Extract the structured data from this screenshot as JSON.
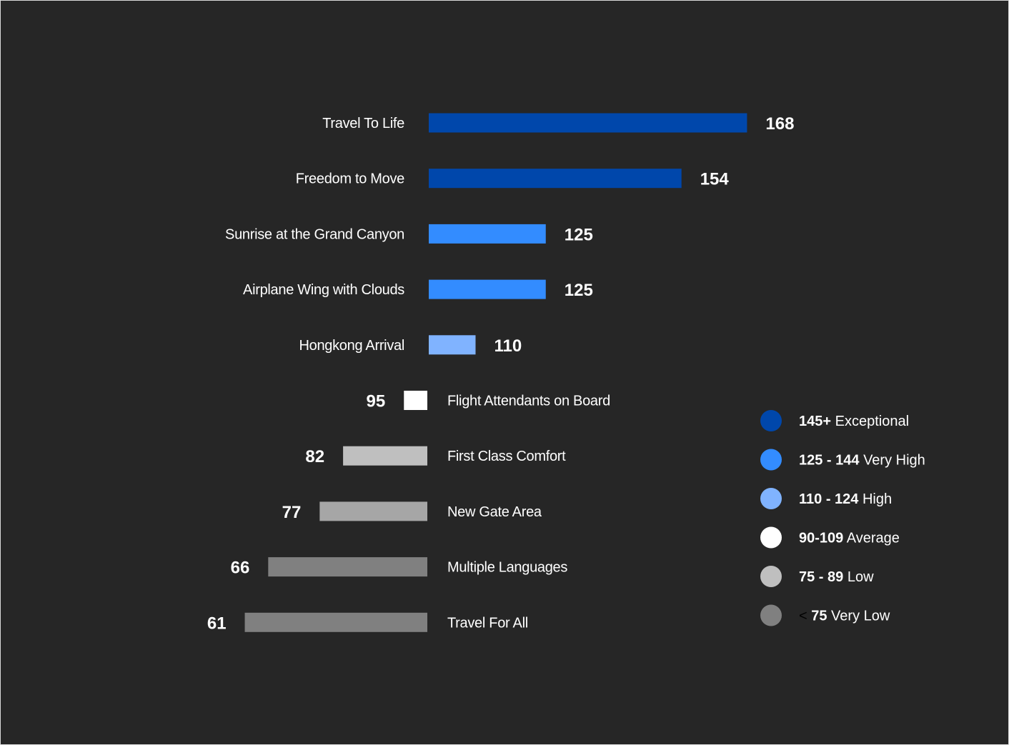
{
  "chart_data": {
    "type": "bar",
    "orientation": "horizontal",
    "baseline": 100,
    "categories": [
      "Travel  To Life",
      "Freedom to Move",
      "Sunrise at the Grand Canyon",
      "Airplane Wing with Clouds",
      "Hongkong Arrival",
      "Flight Attendants on Board",
      "First Class Comfort",
      "New Gate Area",
      "Multiple Languages",
      "Travel  For All"
    ],
    "values": [
      168,
      154,
      125,
      125,
      110,
      95,
      82,
      77,
      66,
      61
    ],
    "value_labels": [
      "168",
      "154",
      "125",
      "125",
      "110",
      "95",
      "82",
      "77",
      "66",
      "61"
    ],
    "bar_colors": [
      "#0047AB",
      "#0047AB",
      "#338CFF",
      "#338CFF",
      "#80B3FF",
      "#FFFFFF",
      "#BFBFBF",
      "#A6A6A6",
      "#808080",
      "#808080"
    ],
    "legend": [
      {
        "color": "#0047AB",
        "parts": [
          {
            "text": "145+",
            "style": "bold"
          },
          {
            "text": " Exceptional",
            "style": "normal"
          }
        ]
      },
      {
        "color": "#338CFF",
        "parts": [
          {
            "text": "125 - 144",
            "style": "bold"
          },
          {
            "text": " Very High",
            "style": "normal"
          }
        ]
      },
      {
        "color": "#80B3FF",
        "parts": [
          {
            "text": "110 - 124",
            "style": "bold"
          },
          {
            "text": " High",
            "style": "normal"
          }
        ]
      },
      {
        "color": "#FFFFFF",
        "parts": [
          {
            "text": "90-109",
            "style": "bold"
          },
          {
            "text": " Average",
            "style": "normal"
          }
        ]
      },
      {
        "color": "#BFBFBF",
        "parts": [
          {
            "text": "75 - 89",
            "style": "bold"
          },
          {
            "text": " Low",
            "style": "normal"
          }
        ]
      },
      {
        "color": "#808080",
        "parts": [
          {
            "text": "<",
            "style": "dark"
          },
          {
            "text": " 75",
            "style": "bold"
          },
          {
            "text": " Very Low",
            "style": "normal"
          }
        ]
      }
    ],
    "legend_position": "right",
    "grid": false,
    "background_color": "#262626"
  }
}
